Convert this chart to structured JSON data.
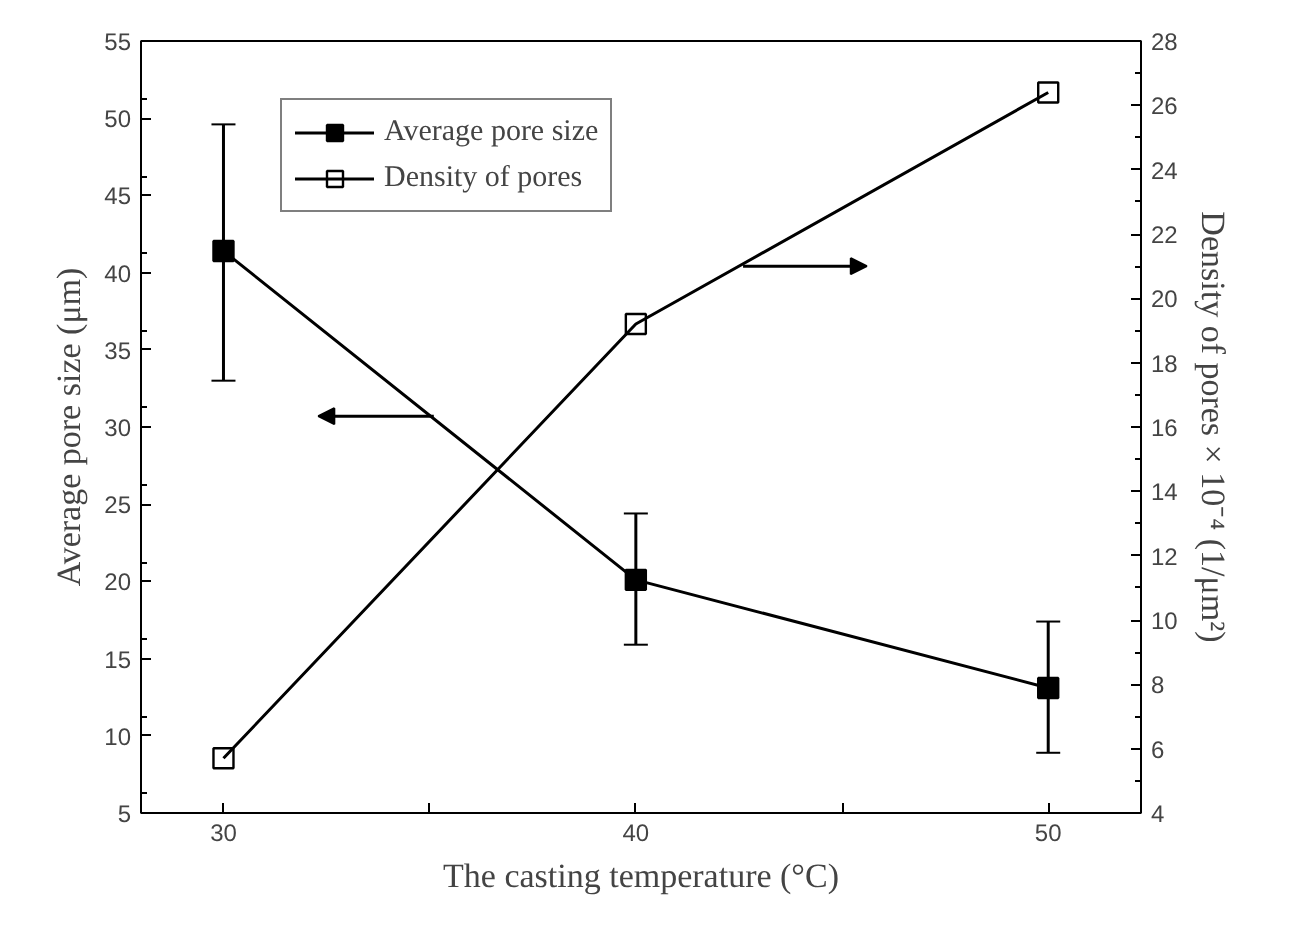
{
  "chart_data": {
    "type": "line",
    "xlabel": "The casting temperature (°C)",
    "ylabel": "Average pore size (μm)",
    "y2label": "Density of pores × 10⁻⁴ (1/μm²)",
    "x": [
      30,
      40,
      50
    ],
    "series": [
      {
        "name": "Average pore size",
        "color": "#000000",
        "values": [
          41.4,
          20.1,
          13.1
        ],
        "errors": [
          [
            33.0,
            49.6
          ],
          [
            15.9,
            24.4
          ],
          [
            8.9,
            17.4
          ]
        ],
        "marker": "square"
      },
      {
        "name": "Density of pores",
        "color": "#000000",
        "values": [
          5.7,
          19.2,
          26.4
        ],
        "axis": "y2",
        "marker": "square_open"
      }
    ],
    "xlim": [
      28,
      52.25
    ],
    "xticks": [
      30,
      {
        "value": 35,
        "label": null
      },
      40,
      {
        "value": 45,
        "label": null
      },
      50
    ],
    "ylim": [
      5,
      55
    ],
    "yticks": [
      5,
      10,
      15,
      20,
      25,
      30,
      35,
      40,
      45,
      50,
      55
    ],
    "y2lim": [
      4,
      28
    ],
    "y2ticks": [
      4,
      6,
      8,
      10,
      12,
      14,
      16,
      18,
      20,
      22,
      24,
      26,
      28
    ],
    "grid": false,
    "legend": "top left",
    "line_style": "solid"
  }
}
